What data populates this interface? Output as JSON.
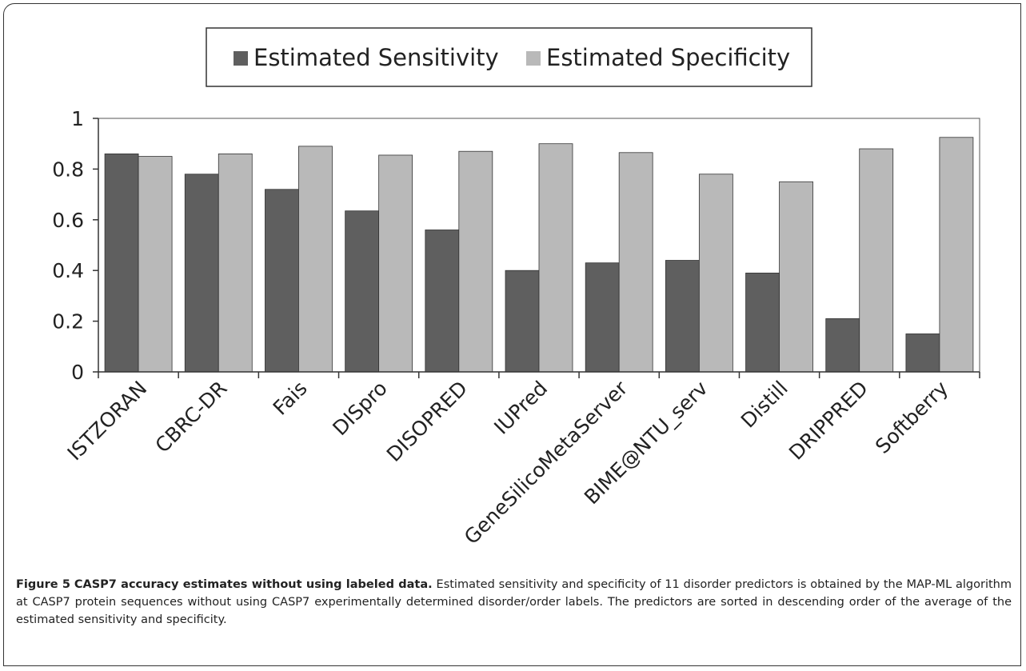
{
  "chart_data": {
    "type": "bar",
    "categories": [
      "ISTZORAN",
      "CBRC-DR",
      "Fais",
      "DISpro",
      "DISOPRED",
      "IUPred",
      "GeneSilicoMetaServer",
      "BIME@NTU_serv",
      "Distill",
      "DRIPPRED",
      "Softberry"
    ],
    "series": [
      {
        "name": "Estimated Sensitivity",
        "color": "#5f5f5f",
        "values": [
          0.86,
          0.78,
          0.72,
          0.635,
          0.56,
          0.4,
          0.43,
          0.44,
          0.39,
          0.21,
          0.15
        ]
      },
      {
        "name": "Estimated Specificity",
        "color": "#b9b9b9",
        "values": [
          0.85,
          0.86,
          0.89,
          0.855,
          0.87,
          0.9,
          0.865,
          0.78,
          0.75,
          0.88,
          0.925
        ]
      }
    ],
    "ylim": [
      0,
      1
    ],
    "yticks": [
      0,
      0.2,
      0.4,
      0.6,
      0.8,
      1
    ],
    "legend": "top"
  },
  "caption": {
    "label": "Figure 5",
    "title": "CASP7 accuracy estimates without using labeled data.",
    "text": "Estimated sensitivity and specificity of 11 disorder predictors is obtained by the MAP-ML algorithm at CASP7 protein sequences without using CASP7 experimentally determined disorder/order labels. The predictors are sorted in descending order of the average of the estimated sensitivity and specificity."
  }
}
